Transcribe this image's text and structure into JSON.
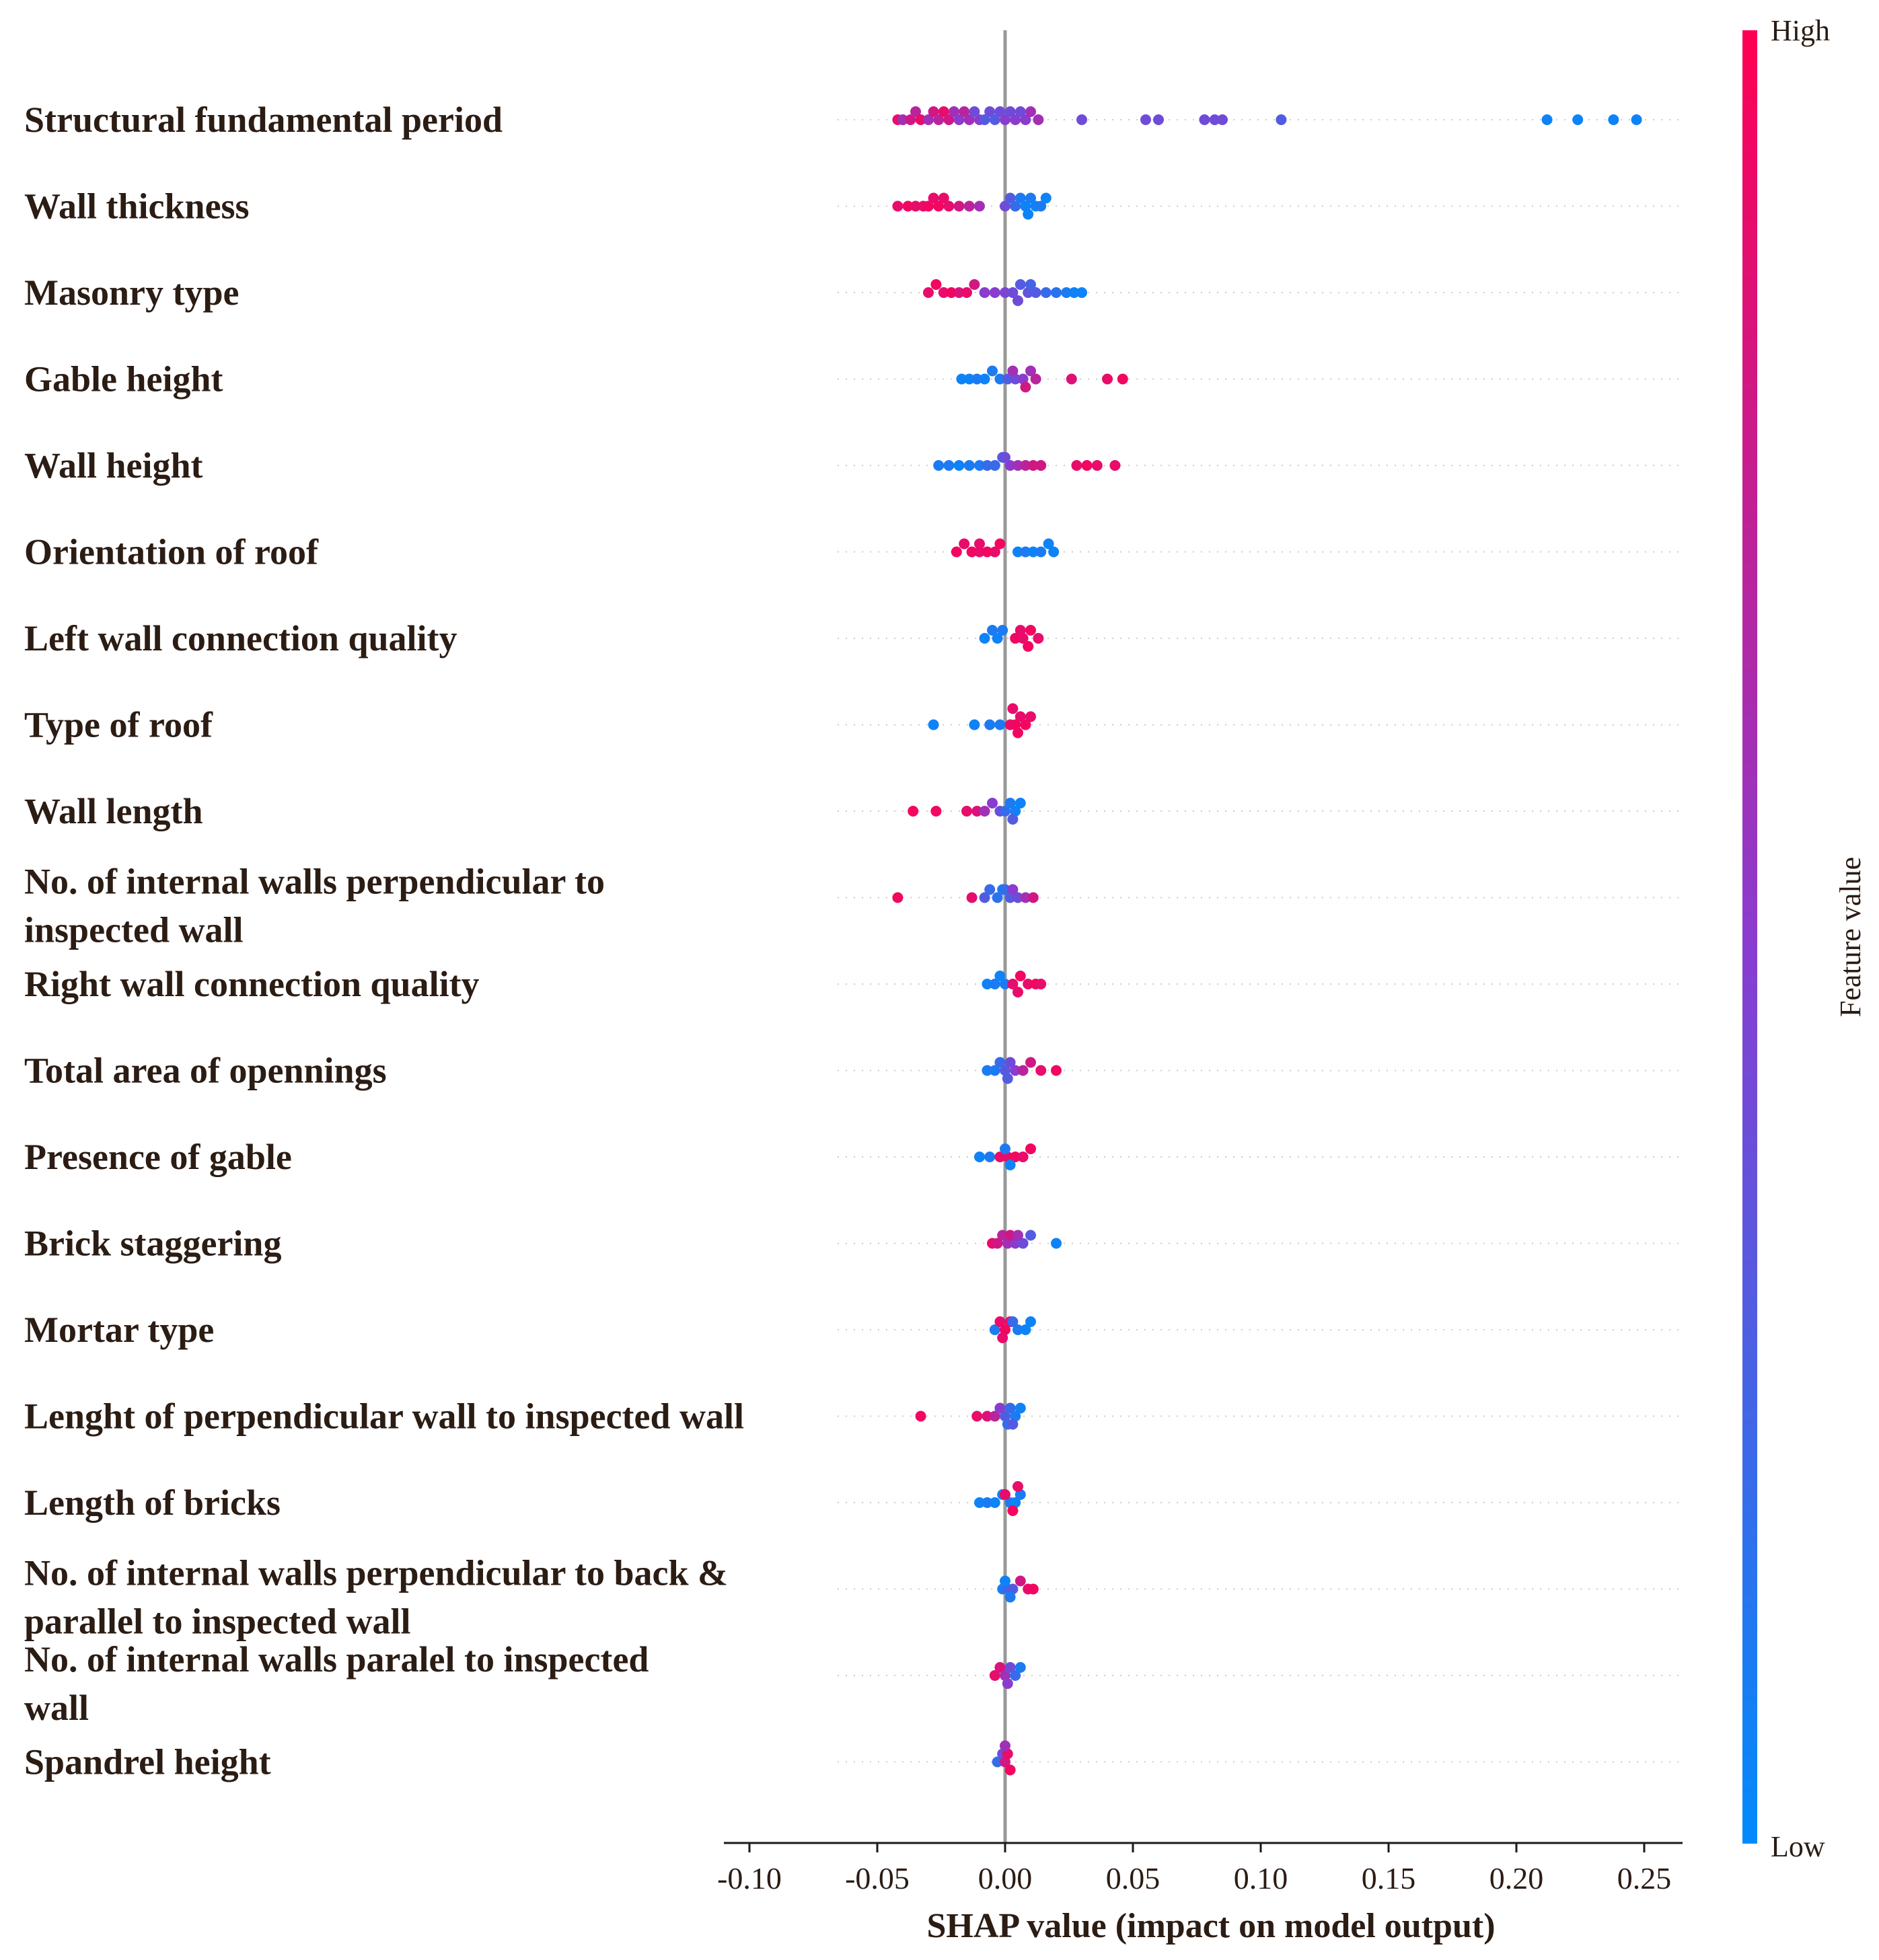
{
  "chart_data": {
    "type": "scatter",
    "subtype": "shap-beeswarm-summary",
    "xlabel": "SHAP value (impact on model output)",
    "xlim": [
      -0.11,
      0.265
    ],
    "xticks": [
      -0.1,
      -0.05,
      0.0,
      0.05,
      0.1,
      0.15,
      0.2,
      0.25
    ],
    "xtick_labels": [
      "-0.10",
      "-0.05",
      "0.00",
      "0.05",
      "0.10",
      "0.15",
      "0.20",
      "0.25"
    ],
    "zero_line": true,
    "colorbar": {
      "title": "Feature value",
      "high_label": "High",
      "low_label": "Low",
      "high_color": "#ff0052",
      "mid_color": "#8a3ccf",
      "low_color": "#008bfb"
    },
    "features": [
      {
        "name": "Structural fundamental period",
        "points": [
          [
            -0.042,
            0.9
          ],
          [
            -0.04,
            0.6
          ],
          [
            -0.037,
            0.8
          ],
          [
            -0.035,
            0.7
          ],
          [
            -0.033,
            0.9
          ],
          [
            -0.03,
            0.6
          ],
          [
            -0.028,
            0.8
          ],
          [
            -0.026,
            0.7
          ],
          [
            -0.024,
            0.9
          ],
          [
            -0.022,
            0.8
          ],
          [
            -0.02,
            0.6
          ],
          [
            -0.018,
            0.5
          ],
          [
            -0.016,
            0.7
          ],
          [
            -0.014,
            0.6
          ],
          [
            -0.012,
            0.4
          ],
          [
            -0.01,
            0.5
          ],
          [
            -0.008,
            0.3
          ],
          [
            -0.006,
            0.4
          ],
          [
            -0.004,
            0.3
          ],
          [
            -0.002,
            0.4
          ],
          [
            0.0,
            0.5
          ],
          [
            0.002,
            0.4
          ],
          [
            0.004,
            0.5
          ],
          [
            0.006,
            0.4
          ],
          [
            0.008,
            0.5
          ],
          [
            0.01,
            0.6
          ],
          [
            0.013,
            0.6
          ],
          [
            0.03,
            0.4
          ],
          [
            0.055,
            0.4
          ],
          [
            0.06,
            0.4
          ],
          [
            0.078,
            0.4
          ],
          [
            0.082,
            0.4
          ],
          [
            0.085,
            0.4
          ],
          [
            0.108,
            0.3
          ],
          [
            0.212,
            0.05
          ],
          [
            0.224,
            0.05
          ],
          [
            0.238,
            0.05
          ],
          [
            0.247,
            0.05
          ]
        ]
      },
      {
        "name": "Wall thickness",
        "points": [
          [
            -0.042,
            0.9
          ],
          [
            -0.038,
            0.95
          ],
          [
            -0.035,
            0.9
          ],
          [
            -0.032,
            0.9
          ],
          [
            -0.03,
            0.95
          ],
          [
            -0.028,
            0.9
          ],
          [
            -0.026,
            0.95
          ],
          [
            -0.024,
            0.9
          ],
          [
            -0.022,
            0.9
          ],
          [
            -0.018,
            0.8
          ],
          [
            -0.014,
            0.7
          ],
          [
            -0.01,
            0.6
          ],
          [
            0.0,
            0.4
          ],
          [
            0.002,
            0.3
          ],
          [
            0.004,
            0.2
          ],
          [
            0.006,
            0.1
          ],
          [
            0.008,
            0.05
          ],
          [
            0.01,
            0.1
          ],
          [
            0.012,
            0.05
          ],
          [
            0.014,
            0.1
          ],
          [
            0.016,
            0.05
          ],
          [
            0.009,
            0.05
          ]
        ]
      },
      {
        "name": "Masonry type",
        "points": [
          [
            -0.03,
            0.9
          ],
          [
            -0.027,
            0.95
          ],
          [
            -0.024,
            0.9
          ],
          [
            -0.021,
            0.95
          ],
          [
            -0.018,
            0.85
          ],
          [
            -0.015,
            0.9
          ],
          [
            -0.012,
            0.8
          ],
          [
            -0.008,
            0.5
          ],
          [
            -0.004,
            0.5
          ],
          [
            0.0,
            0.45
          ],
          [
            0.003,
            0.4
          ],
          [
            0.006,
            0.3
          ],
          [
            0.009,
            0.35
          ],
          [
            0.012,
            0.3
          ],
          [
            0.016,
            0.2
          ],
          [
            0.02,
            0.15
          ],
          [
            0.024,
            0.1
          ],
          [
            0.027,
            0.05
          ],
          [
            0.03,
            0.05
          ],
          [
            0.005,
            0.4
          ],
          [
            0.01,
            0.25
          ]
        ]
      },
      {
        "name": "Gable height",
        "points": [
          [
            -0.017,
            0.05
          ],
          [
            -0.014,
            0.05
          ],
          [
            -0.011,
            0.1
          ],
          [
            -0.008,
            0.05
          ],
          [
            -0.005,
            0.1
          ],
          [
            -0.002,
            0.1
          ],
          [
            0.001,
            0.3
          ],
          [
            0.004,
            0.4
          ],
          [
            0.007,
            0.5
          ],
          [
            0.01,
            0.6
          ],
          [
            0.012,
            0.7
          ],
          [
            0.026,
            0.85
          ],
          [
            0.04,
            0.9
          ],
          [
            0.046,
            0.95
          ],
          [
            0.003,
            0.6
          ],
          [
            0.008,
            0.8
          ]
        ]
      },
      {
        "name": "Wall height",
        "points": [
          [
            -0.026,
            0.1
          ],
          [
            -0.022,
            0.1
          ],
          [
            -0.018,
            0.05
          ],
          [
            -0.014,
            0.1
          ],
          [
            -0.01,
            0.1
          ],
          [
            -0.007,
            0.2
          ],
          [
            -0.004,
            0.2
          ],
          [
            -0.001,
            0.3
          ],
          [
            0.002,
            0.5
          ],
          [
            0.005,
            0.6
          ],
          [
            0.008,
            0.7
          ],
          [
            0.011,
            0.8
          ],
          [
            0.014,
            0.8
          ],
          [
            0.028,
            0.9
          ],
          [
            0.032,
            0.95
          ],
          [
            0.036,
            0.9
          ],
          [
            0.043,
            0.9
          ],
          [
            0.0,
            0.4
          ]
        ]
      },
      {
        "name": "Orientation of roof",
        "points": [
          [
            -0.019,
            0.95
          ],
          [
            -0.016,
            0.9
          ],
          [
            -0.013,
            0.95
          ],
          [
            -0.01,
            0.9
          ],
          [
            -0.007,
            0.95
          ],
          [
            -0.004,
            0.9
          ],
          [
            -0.002,
            0.95
          ],
          [
            -0.01,
            0.9
          ],
          [
            0.005,
            0.05
          ],
          [
            0.008,
            0.1
          ],
          [
            0.011,
            0.05
          ],
          [
            0.014,
            0.1
          ],
          [
            0.017,
            0.05
          ],
          [
            0.019,
            0.05
          ]
        ]
      },
      {
        "name": "Left wall connection quality",
        "points": [
          [
            -0.008,
            0.05
          ],
          [
            -0.005,
            0.1
          ],
          [
            -0.003,
            0.05
          ],
          [
            -0.001,
            0.1
          ],
          [
            0.004,
            0.95
          ],
          [
            0.007,
            0.9
          ],
          [
            0.01,
            0.95
          ],
          [
            0.013,
            0.9
          ],
          [
            0.009,
            0.95
          ],
          [
            0.006,
            0.9
          ]
        ]
      },
      {
        "name": "Type of roof",
        "points": [
          [
            -0.028,
            0.05
          ],
          [
            -0.012,
            0.05
          ],
          [
            -0.006,
            0.1
          ],
          [
            -0.002,
            0.1
          ],
          [
            0.002,
            0.9
          ],
          [
            0.004,
            0.95
          ],
          [
            0.006,
            0.9
          ],
          [
            0.008,
            0.95
          ],
          [
            0.01,
            0.9
          ],
          [
            0.005,
            0.95
          ],
          [
            0.003,
            0.9
          ]
        ]
      },
      {
        "name": "Wall length",
        "points": [
          [
            -0.036,
            0.95
          ],
          [
            -0.027,
            0.95
          ],
          [
            -0.015,
            0.9
          ],
          [
            -0.011,
            0.85
          ],
          [
            -0.008,
            0.6
          ],
          [
            -0.005,
            0.5
          ],
          [
            -0.002,
            0.4
          ],
          [
            0.0,
            0.2
          ],
          [
            0.002,
            0.1
          ],
          [
            0.004,
            0.05
          ],
          [
            0.006,
            0.05
          ],
          [
            0.003,
            0.3
          ]
        ]
      },
      {
        "name": "No. of internal walls perpendicular to inspected wall",
        "points": [
          [
            -0.042,
            0.95
          ],
          [
            -0.013,
            0.9
          ],
          [
            -0.008,
            0.3
          ],
          [
            -0.006,
            0.2
          ],
          [
            -0.003,
            0.15
          ],
          [
            -0.001,
            0.1
          ],
          [
            0.002,
            0.3
          ],
          [
            0.005,
            0.4
          ],
          [
            0.008,
            0.6
          ],
          [
            0.011,
            0.8
          ],
          [
            0.0,
            0.2
          ],
          [
            0.003,
            0.5
          ]
        ]
      },
      {
        "name": "Right wall connection quality",
        "points": [
          [
            -0.007,
            0.05
          ],
          [
            -0.004,
            0.1
          ],
          [
            -0.002,
            0.05
          ],
          [
            0.0,
            0.1
          ],
          [
            0.003,
            0.9
          ],
          [
            0.006,
            0.95
          ],
          [
            0.009,
            0.9
          ],
          [
            0.012,
            0.95
          ],
          [
            0.014,
            0.9
          ],
          [
            0.005,
            0.9
          ]
        ]
      },
      {
        "name": "Total area of opennings",
        "points": [
          [
            -0.007,
            0.1
          ],
          [
            -0.004,
            0.1
          ],
          [
            -0.002,
            0.2
          ],
          [
            0.0,
            0.3
          ],
          [
            0.002,
            0.4
          ],
          [
            0.004,
            0.5
          ],
          [
            0.007,
            0.7
          ],
          [
            0.01,
            0.8
          ],
          [
            0.014,
            0.9
          ],
          [
            0.02,
            0.95
          ],
          [
            0.001,
            0.3
          ]
        ]
      },
      {
        "name": "Presence of gable",
        "points": [
          [
            -0.01,
            0.05
          ],
          [
            -0.006,
            0.1
          ],
          [
            -0.002,
            0.9
          ],
          [
            0.001,
            0.9
          ],
          [
            0.004,
            0.95
          ],
          [
            0.007,
            0.9
          ],
          [
            0.01,
            0.95
          ],
          [
            0.0,
            0.1
          ],
          [
            0.002,
            0.05
          ]
        ]
      },
      {
        "name": "Brick staggering",
        "points": [
          [
            -0.005,
            0.9
          ],
          [
            -0.003,
            0.8
          ],
          [
            -0.001,
            0.7
          ],
          [
            0.001,
            0.6
          ],
          [
            0.004,
            0.5
          ],
          [
            0.007,
            0.4
          ],
          [
            0.01,
            0.3
          ],
          [
            0.02,
            0.05
          ],
          [
            0.002,
            0.8
          ],
          [
            0.005,
            0.6
          ]
        ]
      },
      {
        "name": "Mortar type",
        "points": [
          [
            -0.004,
            0.1
          ],
          [
            -0.002,
            0.9
          ],
          [
            0.0,
            0.95
          ],
          [
            0.002,
            0.9
          ],
          [
            0.005,
            0.1
          ],
          [
            0.008,
            0.05
          ],
          [
            0.01,
            0.05
          ],
          [
            -0.001,
            0.9
          ],
          [
            0.003,
            0.2
          ]
        ]
      },
      {
        "name": "Lenght of perpendicular wall to inspected wall",
        "points": [
          [
            -0.033,
            0.95
          ],
          [
            -0.011,
            0.9
          ],
          [
            -0.007,
            0.85
          ],
          [
            -0.004,
            0.7
          ],
          [
            -0.002,
            0.5
          ],
          [
            0.0,
            0.3
          ],
          [
            0.002,
            0.2
          ],
          [
            0.004,
            0.1
          ],
          [
            0.006,
            0.05
          ],
          [
            0.001,
            0.2
          ],
          [
            0.003,
            0.3
          ]
        ]
      },
      {
        "name": "Length of bricks",
        "points": [
          [
            -0.01,
            0.05
          ],
          [
            -0.007,
            0.1
          ],
          [
            -0.004,
            0.05
          ],
          [
            -0.001,
            0.1
          ],
          [
            0.002,
            0.1
          ],
          [
            0.004,
            0.05
          ],
          [
            0.006,
            0.1
          ],
          [
            0.0,
            0.9
          ],
          [
            0.003,
            0.95
          ],
          [
            0.005,
            0.9
          ]
        ]
      },
      {
        "name": "No. of internal walls perpendicular to back & parallel to inspected wall",
        "points": [
          [
            -0.001,
            0.1
          ],
          [
            0.001,
            0.2
          ],
          [
            0.003,
            0.3
          ],
          [
            0.006,
            0.8
          ],
          [
            0.009,
            0.9
          ],
          [
            0.011,
            0.95
          ],
          [
            0.0,
            0.05
          ],
          [
            0.002,
            0.1
          ]
        ]
      },
      {
        "name": "No. of internal walls paralel to inspected wall",
        "points": [
          [
            -0.004,
            0.9
          ],
          [
            -0.002,
            0.85
          ],
          [
            0.0,
            0.6
          ],
          [
            0.002,
            0.4
          ],
          [
            0.004,
            0.2
          ],
          [
            0.006,
            0.1
          ],
          [
            0.001,
            0.5
          ]
        ]
      },
      {
        "name": "Spandrel height",
        "points": [
          [
            -0.003,
            0.2
          ],
          [
            -0.001,
            0.4
          ],
          [
            0.0,
            0.8
          ],
          [
            0.001,
            0.9
          ],
          [
            0.002,
            0.95
          ],
          [
            0.0,
            0.6
          ]
        ]
      }
    ]
  }
}
